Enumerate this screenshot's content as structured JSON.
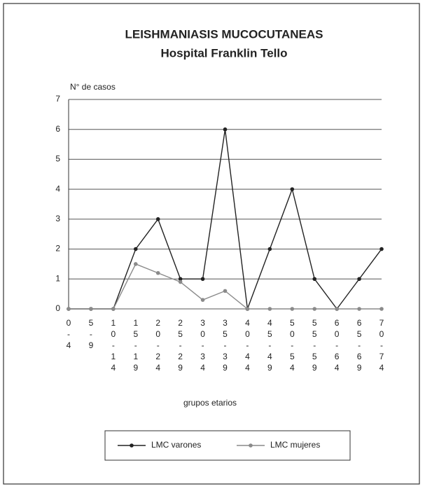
{
  "chart_data": {
    "type": "line",
    "title": "LEISHMANIASIS  MUCOCUTANEAS",
    "subtitle": "Hospital Franklin Tello",
    "y_label": "N° de casos",
    "x_label": "grupos etarios",
    "categories": [
      "0-4",
      "5-9",
      "10-14",
      "15-19",
      "20-24",
      "25-29",
      "30-34",
      "35-39",
      "40-44",
      "45-49",
      "50-54",
      "55-59",
      "60-64",
      "65-69",
      "70-74"
    ],
    "series": [
      {
        "name": "LMC  varones",
        "color": "#222222",
        "values": [
          0,
          0,
          0,
          2,
          3,
          1,
          1,
          6,
          0,
          2,
          4,
          1,
          0,
          1,
          2
        ]
      },
      {
        "name": "LMC  mujeres",
        "color": "#8a8a8a",
        "values": [
          0,
          0,
          0,
          1.5,
          1.2,
          0.9,
          0.3,
          0.6,
          0,
          0,
          0,
          0,
          0,
          0,
          0
        ]
      }
    ],
    "ylim": [
      0,
      7
    ],
    "yticks": [
      0,
      1,
      2,
      3,
      4,
      5,
      6,
      7
    ],
    "grid": true
  }
}
